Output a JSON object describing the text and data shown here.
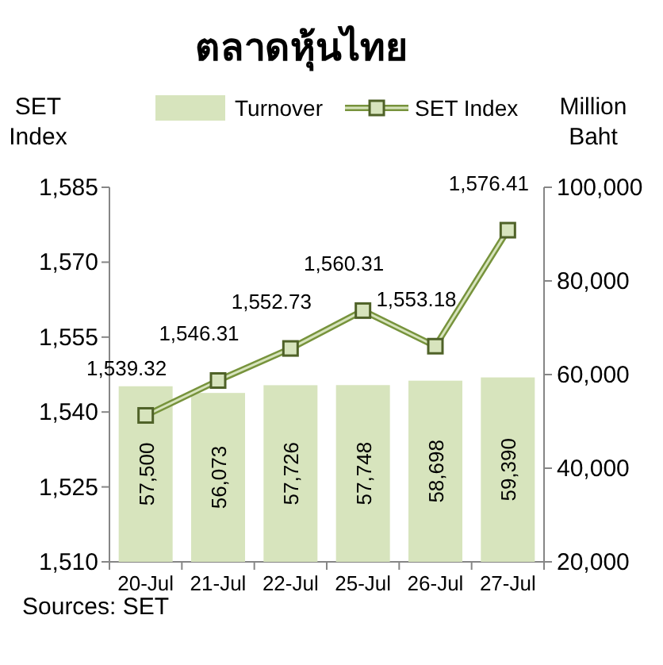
{
  "chart_data": {
    "type": "bar",
    "title": "ตลาดหุ้นไทย",
    "ylabel": "SET Index",
    "y2label": "Million Baht",
    "categories": [
      "20-Jul",
      "21-Jul",
      "22-Jul",
      "25-Jul",
      "26-Jul",
      "27-Jul"
    ],
    "series": [
      {
        "name": "Turnover",
        "axis": "y2",
        "color": "#d7e4bd",
        "values": [
          57500,
          56073,
          57726,
          57748,
          58698,
          59390
        ],
        "value_labels": [
          "57,500",
          "56,073",
          "57,726",
          "57,748",
          "58,698",
          "59,390"
        ]
      },
      {
        "name": "SET Index",
        "type": "line",
        "color": "#77933c",
        "values": [
          1539.32,
          1546.31,
          1552.73,
          1560.31,
          1553.18,
          1576.41
        ],
        "value_labels": [
          "1,539.32",
          "1,546.31",
          "1,552.73",
          "1,560.31",
          "1,553.18",
          "1,576.41"
        ]
      }
    ],
    "marker": "square",
    "legend": "top",
    "ylim": [
      1510,
      1585
    ],
    "yticks": [
      {
        "value": 1510,
        "label": "1,510"
      },
      {
        "value": 1525,
        "label": "1,525"
      },
      {
        "value": 1540,
        "label": "1,540"
      },
      {
        "value": 1555,
        "label": "1,555"
      },
      {
        "value": 1570,
        "label": "1,570"
      },
      {
        "value": 1585,
        "label": "1,585"
      }
    ],
    "y2lim": [
      20000,
      100000
    ],
    "y2ticks": [
      {
        "value": 20000,
        "label": "20,000"
      },
      {
        "value": 40000,
        "label": "40,000"
      },
      {
        "value": 60000,
        "label": "60,000"
      },
      {
        "value": 80000,
        "label": "80,000"
      },
      {
        "value": 100000,
        "label": "100,000"
      }
    ],
    "annotations": [
      "Sources: SET"
    ]
  }
}
